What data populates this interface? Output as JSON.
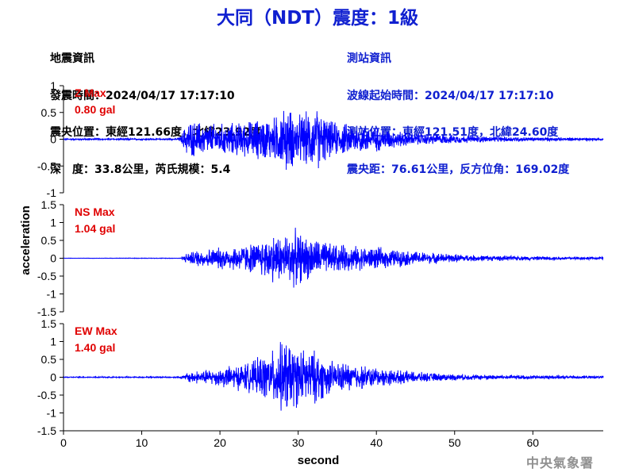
{
  "title": "大同（NDT）震度：1級",
  "quake_info": {
    "header": "地震資訊",
    "origin_time": "發震時間：2024/04/17 17:17:10",
    "epicenter": "震央位置：東經121.66度，北緯23.92度",
    "depth_magnitude": "深　度：33.8公里，芮氏規模：5.4"
  },
  "station_info": {
    "header": "測站資訊",
    "wave_start": "波線起始時間：2024/04/17 17:17:10",
    "location": "測站位置：東經121.51度，北緯24.60度",
    "distance": "震央距：76.61公里，反方位角：169.02度"
  },
  "credit": "中央氣象署",
  "colors": {
    "trace": "#0000ff",
    "max_label": "#e00000",
    "title": "#1020d0"
  },
  "chart_data": {
    "type": "line",
    "xlabel": "second",
    "ylabel": "acceleration",
    "xlim": [
      0,
      69
    ],
    "xticks": [
      0,
      10,
      20,
      30,
      40,
      50,
      60
    ],
    "panels": [
      {
        "component": "Z",
        "max_label": "Z Max",
        "max_value": "0.80 gal",
        "ylim": [
          -1,
          1
        ],
        "yticks": [
          -1,
          -0.5,
          0,
          0.5,
          1
        ],
        "envelope": [
          [
            0,
            0.02
          ],
          [
            14.5,
            0.02
          ],
          [
            15,
            0.08
          ],
          [
            15.5,
            0.3
          ],
          [
            16,
            0.45
          ],
          [
            18,
            0.4
          ],
          [
            20,
            0.38
          ],
          [
            23,
            0.42
          ],
          [
            25,
            0.5
          ],
          [
            27,
            0.55
          ],
          [
            28.5,
            0.8
          ],
          [
            30,
            0.6
          ],
          [
            32.5,
            0.75
          ],
          [
            34,
            0.45
          ],
          [
            36,
            0.38
          ],
          [
            38,
            0.35
          ],
          [
            40,
            0.3
          ],
          [
            42,
            0.22
          ],
          [
            45,
            0.15
          ],
          [
            50,
            0.1
          ],
          [
            55,
            0.07
          ],
          [
            60,
            0.05
          ],
          [
            65,
            0.04
          ],
          [
            69,
            0.03
          ]
        ]
      },
      {
        "component": "NS",
        "max_label": "NS Max",
        "max_value": "1.04 gal",
        "ylim": [
          -1.5,
          1.5
        ],
        "yticks": [
          -1.5,
          -1,
          -0.5,
          0,
          0.5,
          1,
          1.5
        ],
        "envelope": [
          [
            0,
            0.005
          ],
          [
            15,
            0.01
          ],
          [
            15.5,
            0.15
          ],
          [
            17,
            0.3
          ],
          [
            20,
            0.4
          ],
          [
            23,
            0.5
          ],
          [
            25,
            0.6
          ],
          [
            26,
            0.8
          ],
          [
            27,
            0.9
          ],
          [
            28,
            0.85
          ],
          [
            29.5,
            1.04
          ],
          [
            31,
            0.8
          ],
          [
            32.5,
            0.7
          ],
          [
            34,
            0.55
          ],
          [
            37,
            0.45
          ],
          [
            40,
            0.4
          ],
          [
            43,
            0.3
          ],
          [
            47,
            0.2
          ],
          [
            52,
            0.12
          ],
          [
            58,
            0.08
          ],
          [
            64,
            0.06
          ],
          [
            69,
            0.05
          ]
        ]
      },
      {
        "component": "EW",
        "max_label": "EW Max",
        "max_value": "1.40 gal",
        "ylim": [
          -1.5,
          1.5
        ],
        "yticks": [
          -1.5,
          -1,
          -0.5,
          0,
          0.5,
          1,
          1.5
        ],
        "envelope": [
          [
            0,
            0.02
          ],
          [
            14,
            0.02
          ],
          [
            15.5,
            0.08
          ],
          [
            16,
            0.22
          ],
          [
            18,
            0.25
          ],
          [
            20,
            0.35
          ],
          [
            22,
            0.45
          ],
          [
            24,
            0.55
          ],
          [
            25.5,
            0.8
          ],
          [
            26.5,
            0.9
          ],
          [
            27.5,
            1.2
          ],
          [
            28.5,
            1.4
          ],
          [
            29.5,
            1.1
          ],
          [
            31,
            1.0
          ],
          [
            32.5,
            0.95
          ],
          [
            34,
            0.6
          ],
          [
            37,
            0.5
          ],
          [
            40,
            0.35
          ],
          [
            43,
            0.25
          ],
          [
            47,
            0.15
          ],
          [
            52,
            0.1
          ],
          [
            58,
            0.08
          ],
          [
            64,
            0.06
          ],
          [
            69,
            0.05
          ]
        ]
      }
    ]
  }
}
